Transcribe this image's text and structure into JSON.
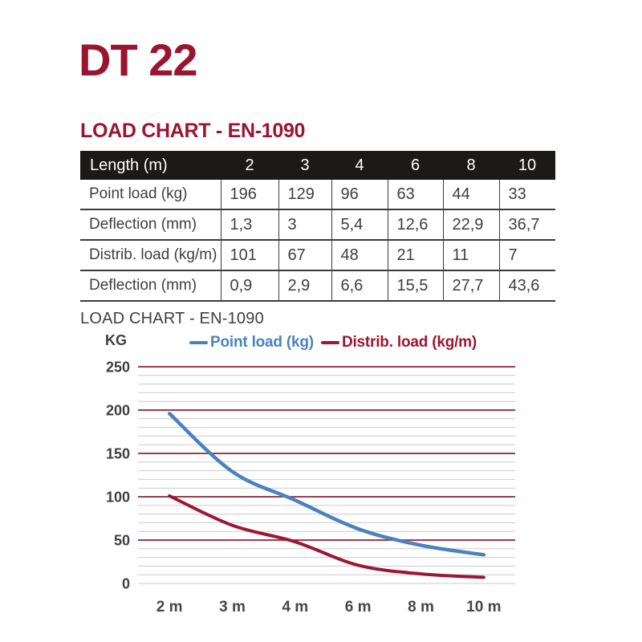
{
  "page": {
    "title": "DT 22",
    "section_heading": "LOAD CHART - EN-1090"
  },
  "table": {
    "header": {
      "label": "Length (m)",
      "columns": [
        "2",
        "3",
        "4",
        "6",
        "8",
        "10"
      ]
    },
    "rows": [
      {
        "label": "Point load (kg)",
        "values": [
          "196",
          "129",
          "96",
          "63",
          "44",
          "33"
        ]
      },
      {
        "label": "Deflection (mm)",
        "values": [
          "1,3",
          "3",
          "5,4",
          "12,6",
          "22,9",
          "36,7"
        ]
      },
      {
        "label": "Distrib. load (kg/m)",
        "values": [
          "101",
          "67",
          "48",
          "21",
          "11",
          "7"
        ]
      },
      {
        "label": "Deflection (mm)",
        "values": [
          "0,9",
          "2,9",
          "6,6",
          "15,5",
          "27,7",
          "43,6"
        ]
      }
    ]
  },
  "chart": {
    "heading": "LOAD CHART - EN-1090"
  },
  "chart_data": {
    "type": "line",
    "title": "LOAD CHART - EN-1090",
    "ylabel": "KG",
    "xlabel": "",
    "categories": [
      "2 m",
      "3 m",
      "4 m",
      "6 m",
      "8 m",
      "10 m"
    ],
    "series": [
      {
        "name": "Point load (kg)",
        "values": [
          196,
          129,
          96,
          63,
          44,
          33
        ],
        "color": "#4B82BE"
      },
      {
        "name": "Distrib. load (kg/m)",
        "values": [
          101,
          67,
          48,
          21,
          11,
          7
        ],
        "color": "#9C1733"
      }
    ],
    "ylim": [
      0,
      250
    ],
    "y_major_ticks": [
      0,
      50,
      100,
      150,
      200,
      250
    ],
    "y_minor_step": 10,
    "grid": "major and minor horizontal gridlines",
    "legend_position": "top"
  },
  "colors": {
    "accent_maroon": "#9B1531",
    "table_header_bg": "#1C1A19",
    "table_header_text": "#FFFFFF",
    "table_border": "#3B3B3B",
    "text_dark": "#3E3E3E",
    "grid_major": "#9A3E4C",
    "grid_minor": "#CBCBCB",
    "tick_label": "#3F3F3F",
    "series_blue": "#4B82BE",
    "series_red": "#9C1733"
  }
}
